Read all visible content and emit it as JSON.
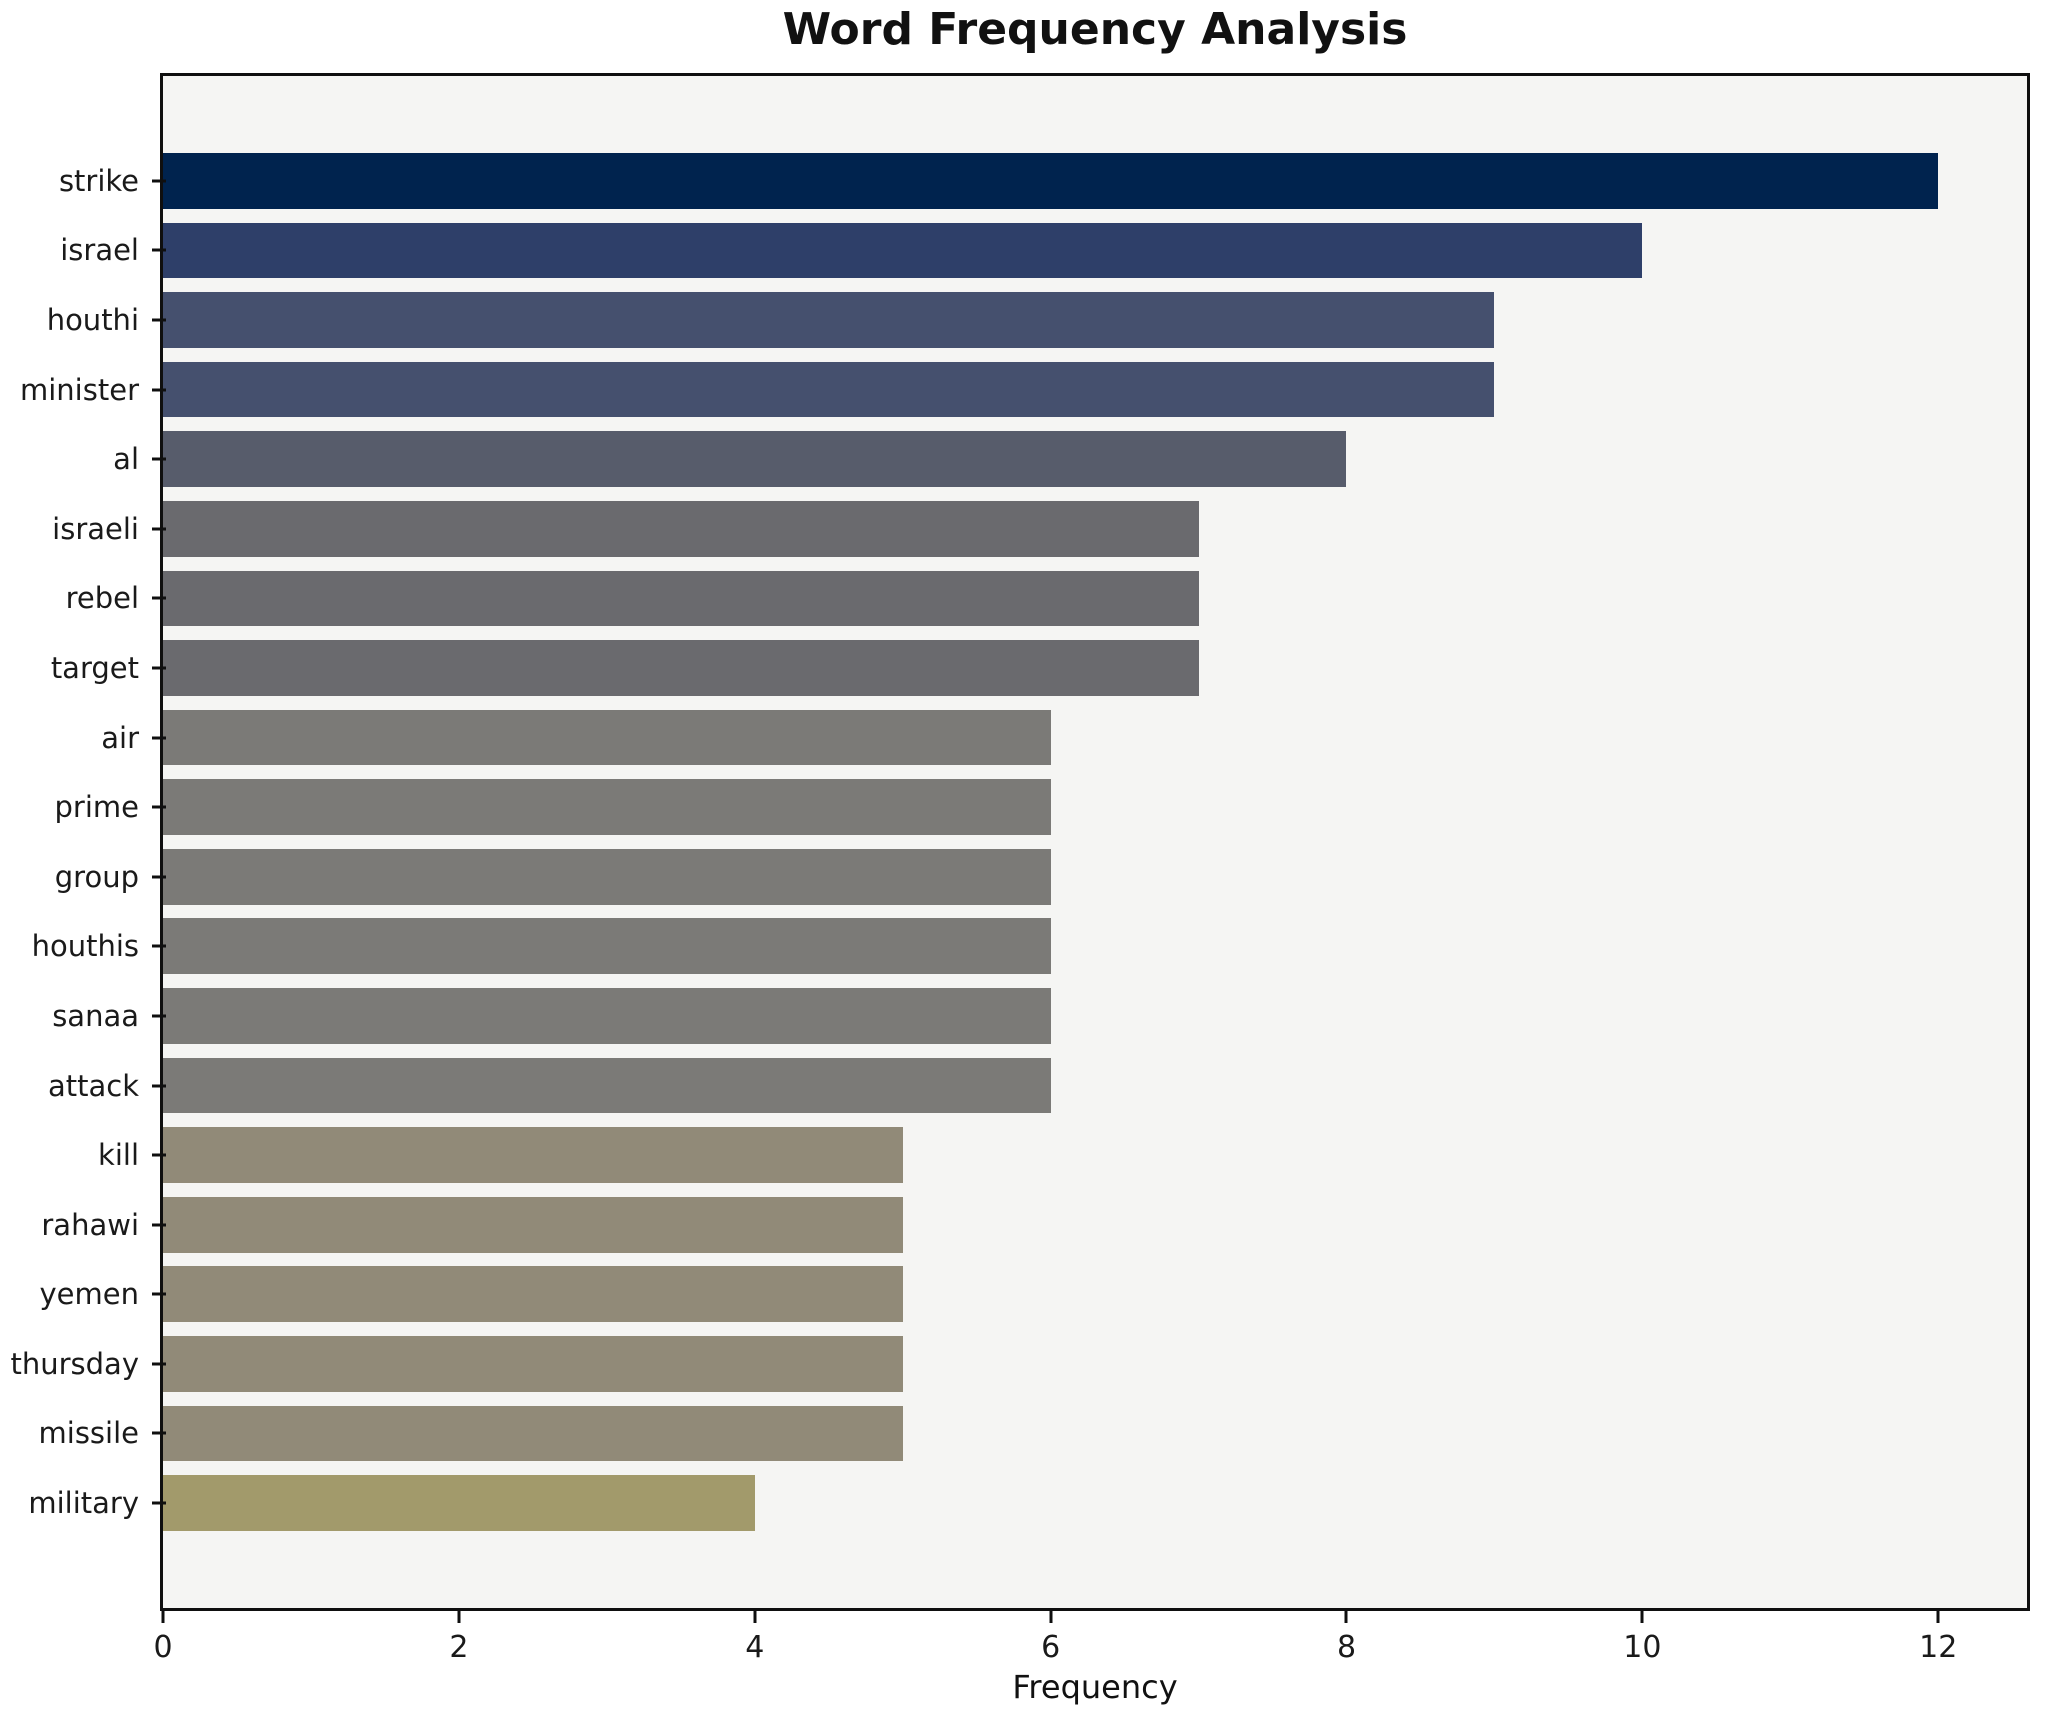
{
  "chart_data": {
    "type": "bar",
    "orientation": "horizontal",
    "title": "Word Frequency Analysis",
    "xlabel": "Frequency",
    "ylabel": "",
    "categories": [
      "strike",
      "israel",
      "houthi",
      "minister",
      "al",
      "israeli",
      "rebel",
      "target",
      "air",
      "prime",
      "group",
      "houthis",
      "sanaa",
      "attack",
      "kill",
      "rahawi",
      "yemen",
      "thursday",
      "missile",
      "military"
    ],
    "values": [
      12,
      10,
      9,
      9,
      8,
      7,
      7,
      7,
      6,
      6,
      6,
      6,
      6,
      6,
      5,
      5,
      5,
      5,
      5,
      4
    ],
    "bar_colors": [
      "#00234e",
      "#2e3f69",
      "#45506e",
      "#45506e",
      "#575c6b",
      "#6a6a6e",
      "#6a6a6e",
      "#6a6a6e",
      "#7b7a77",
      "#7b7a77",
      "#7b7a77",
      "#7b7a77",
      "#7b7a77",
      "#7b7a77",
      "#918a78",
      "#918a78",
      "#918a78",
      "#918a78",
      "#918a78",
      "#a29a6b"
    ],
    "xticks": [
      0,
      2,
      4,
      6,
      8,
      10,
      12
    ],
    "xlim": [
      0,
      12.6
    ],
    "grid": false,
    "legend_position": "none",
    "plot_background": "#f5f5f3",
    "figure_background": "#ffffff",
    "spine_color": "#0f0f0f"
  }
}
